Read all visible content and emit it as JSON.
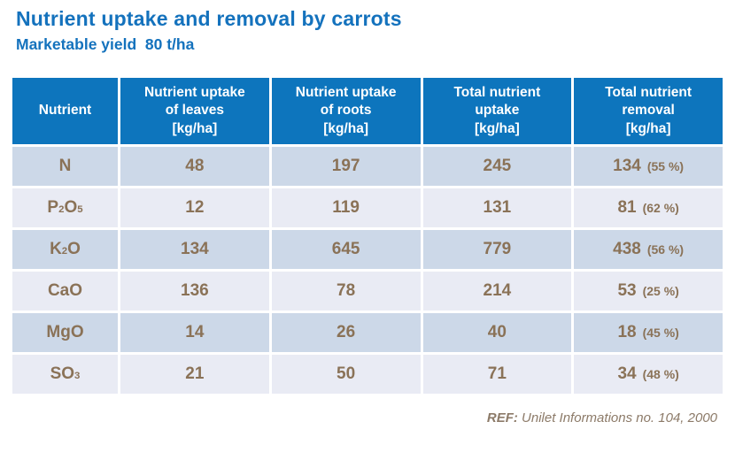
{
  "page": {
    "title": "Nutrient uptake and removal by carrots",
    "subtitle": "Marketable yield  80 t/ha"
  },
  "colors": {
    "title_blue": "#1472bd",
    "header_background": "#0d75bd",
    "header_text": "#ffffff",
    "row_dark": "#ccd8e8",
    "row_light": "#e9ebf4",
    "value_brown": "#8a7257",
    "footer_text": "#8c7a68"
  },
  "chart_data": {
    "type": "table",
    "title": "Nutrient uptake and removal by carrots",
    "subtitle": "Marketable yield 80 t/ha",
    "columns": [
      "Nutrient",
      "Nutrient uptake\nof leaves\n[kg/ha]",
      "Nutrient uptake\nof roots\n[kg/ha]",
      "Total nutrient\nuptake\n[kg/ha]",
      "Total nutrient\nremoval\n[kg/ha]"
    ],
    "rows": [
      {
        "nutrient_label": "N",
        "nutrient_parts": [
          [
            "N",
            false
          ]
        ],
        "uptake_leaves": 48,
        "uptake_roots": 197,
        "total_uptake": 245,
        "removal": 134,
        "removal_pct": 55,
        "removal_pct_text": "(55 %)"
      },
      {
        "nutrient_label": "P2O5",
        "nutrient_parts": [
          [
            "P",
            false
          ],
          [
            "2",
            true
          ],
          [
            "O",
            false
          ],
          [
            "5",
            true
          ]
        ],
        "uptake_leaves": 12,
        "uptake_roots": 119,
        "total_uptake": 131,
        "removal": 81,
        "removal_pct": 62,
        "removal_pct_text": "(62 %)"
      },
      {
        "nutrient_label": "K2O",
        "nutrient_parts": [
          [
            "K",
            false
          ],
          [
            "2",
            true
          ],
          [
            "O",
            false
          ]
        ],
        "uptake_leaves": 134,
        "uptake_roots": 645,
        "total_uptake": 779,
        "removal": 438,
        "removal_pct": 56,
        "removal_pct_text": "(56 %)"
      },
      {
        "nutrient_label": "CaO",
        "nutrient_parts": [
          [
            "CaO",
            false
          ]
        ],
        "uptake_leaves": 136,
        "uptake_roots": 78,
        "total_uptake": 214,
        "removal": 53,
        "removal_pct": 25,
        "removal_pct_text": "(25 %)"
      },
      {
        "nutrient_label": "MgO",
        "nutrient_parts": [
          [
            "MgO",
            false
          ]
        ],
        "uptake_leaves": 14,
        "uptake_roots": 26,
        "total_uptake": 40,
        "removal": 18,
        "removal_pct": 45,
        "removal_pct_text": "(45 %)"
      },
      {
        "nutrient_label": "SO3",
        "nutrient_parts": [
          [
            "SO",
            false
          ],
          [
            "3",
            true
          ]
        ],
        "uptake_leaves": 21,
        "uptake_roots": 50,
        "total_uptake": 71,
        "removal": 34,
        "removal_pct": 48,
        "removal_pct_text": "(48 %)"
      }
    ],
    "units": "kg/ha",
    "legend_position": "none",
    "grid": false
  },
  "footer": {
    "ref_label": "REF:",
    "ref_text": " Unilet Informations no. 104, 2000"
  }
}
